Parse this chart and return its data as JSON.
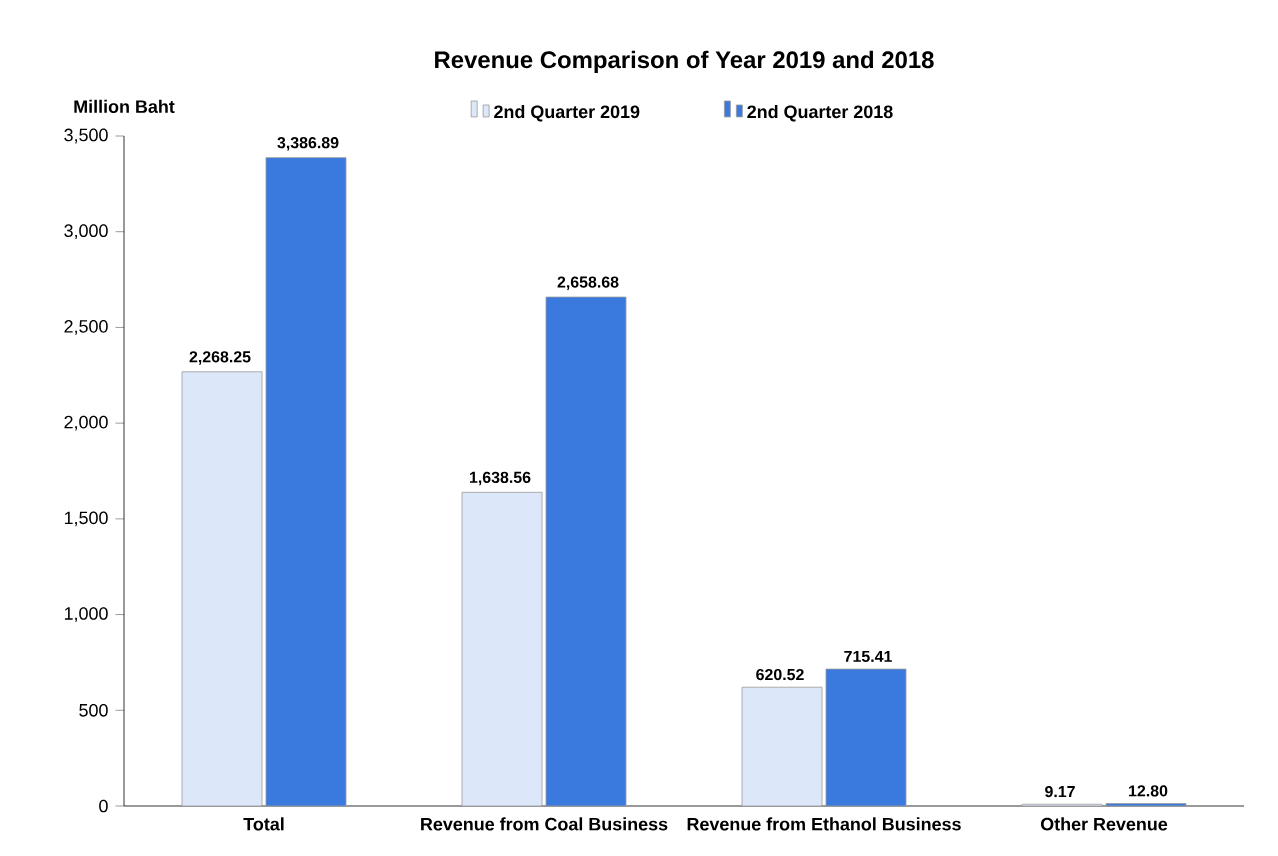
{
  "chart_data": {
    "type": "bar",
    "title": "Revenue Comparison of Year 2019 and 2018",
    "ylabel": "Million  Baht",
    "categories": [
      "Total",
      "Revenue from Coal Business",
      "Revenue from Ethanol Business",
      "Other Revenue"
    ],
    "series": [
      {
        "name": "2nd Quarter 2019",
        "color": "#dce8fa",
        "values": [
          2268.25,
          1638.56,
          620.52,
          9.17
        ],
        "value_labels": [
          "2,268.25",
          "1,638.56",
          "620.52",
          "9.17"
        ]
      },
      {
        "name": "2nd Quarter 2018",
        "color": "#3a7ade",
        "values": [
          3386.89,
          2658.68,
          715.41,
          12.8
        ],
        "value_labels": [
          "3,386.89",
          "2,658.68",
          "715.41",
          "12.80"
        ]
      }
    ],
    "ylim": [
      0,
      3500
    ],
    "yticks": [
      0,
      500,
      {
        "value": 1000,
        "label": "1,000"
      },
      {
        "value": 1500,
        "label": "1,500"
      },
      {
        "value": 2000,
        "label": "2,000"
      },
      {
        "value": 2500,
        "label": "2,500"
      },
      {
        "value": 3000,
        "label": "3,000"
      },
      {
        "value": 3500,
        "label": "3,500"
      }
    ],
    "legend": "top"
  }
}
